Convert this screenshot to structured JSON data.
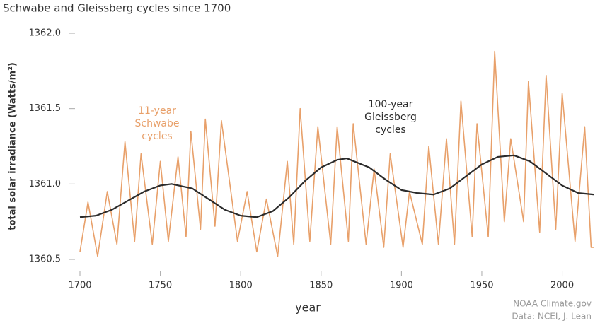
{
  "chart_data": {
    "type": "line",
    "title": "Schwabe and Gleissberg cycles since 1700",
    "x_label": "year",
    "y_label": "total solar irradiance (Watts/m²)",
    "xlim": [
      1700,
      2020
    ],
    "xticks": [
      1700,
      1750,
      1800,
      1850,
      1900,
      1950,
      2000
    ],
    "ylim": [
      1360.5,
      1362.0
    ],
    "yticks": [
      1360.5,
      {
        "value": 1361,
        "label": "1361.0"
      },
      1361.5,
      {
        "value": 1362,
        "label": "1362.0"
      }
    ],
    "series": [
      {
        "name": "11-year Schwabe cycles",
        "color": "#e8a06a",
        "x": [
          1700,
          1705,
          1711,
          1717,
          1723,
          1728,
          1734,
          1738,
          1745,
          1750,
          1755,
          1761,
          1766,
          1769,
          1775,
          1778,
          1784,
          1788,
          1798,
          1804,
          1810,
          1816,
          1823,
          1829,
          1833,
          1837,
          1843,
          1848,
          1856,
          1860,
          1867,
          1870,
          1878,
          1883,
          1889,
          1893,
          1901,
          1905,
          1913,
          1917,
          1923,
          1928,
          1933,
          1937,
          1944,
          1947,
          1954,
          1958,
          1964,
          1968,
          1976,
          1979,
          1986,
          1990,
          1996,
          2000,
          2008,
          2014,
          2018,
          2020
        ],
        "values": [
          1360.55,
          1360.88,
          1360.52,
          1360.95,
          1360.6,
          1361.28,
          1360.62,
          1361.2,
          1360.6,
          1361.15,
          1360.62,
          1361.18,
          1360.65,
          1361.35,
          1360.7,
          1361.43,
          1360.72,
          1361.42,
          1360.62,
          1360.95,
          1360.55,
          1360.9,
          1360.52,
          1361.15,
          1360.6,
          1361.5,
          1360.62,
          1361.38,
          1360.6,
          1361.38,
          1360.62,
          1361.4,
          1360.6,
          1361.1,
          1360.58,
          1361.2,
          1360.58,
          1360.95,
          1360.6,
          1361.25,
          1360.6,
          1361.3,
          1360.6,
          1361.55,
          1360.65,
          1361.4,
          1360.65,
          1361.88,
          1360.75,
          1361.3,
          1360.75,
          1361.68,
          1360.68,
          1361.72,
          1360.7,
          1361.6,
          1360.62,
          1361.38,
          1360.58,
          1360.58
        ]
      },
      {
        "name": "100-year Gleissberg cycles",
        "color": "#2b2b2b",
        "x": [
          1700,
          1710,
          1720,
          1730,
          1740,
          1750,
          1757,
          1770,
          1780,
          1790,
          1800,
          1810,
          1820,
          1830,
          1840,
          1850,
          1860,
          1866,
          1880,
          1890,
          1900,
          1910,
          1920,
          1930,
          1940,
          1950,
          1960,
          1970,
          1980,
          1990,
          2000,
          2010,
          2020
        ],
        "values": [
          1360.78,
          1360.79,
          1360.83,
          1360.89,
          1360.95,
          1360.99,
          1361.0,
          1360.97,
          1360.9,
          1360.83,
          1360.79,
          1360.78,
          1360.82,
          1360.91,
          1361.02,
          1361.11,
          1361.16,
          1361.17,
          1361.11,
          1361.03,
          1360.96,
          1360.94,
          1360.93,
          1360.97,
          1361.05,
          1361.13,
          1361.18,
          1361.19,
          1361.15,
          1361.07,
          1360.99,
          1360.94,
          1360.93
        ]
      }
    ],
    "annotations": [
      {
        "lines": [
          "11-year",
          "Schwabe",
          "cycles"
        ],
        "color": "#e8a06a"
      },
      {
        "lines": [
          "100-year",
          "Gleissberg",
          "cycles"
        ],
        "color": "#2b2b2b"
      }
    ],
    "source": [
      "NOAA Climate.gov",
      "Data: NCEI, J. Lean"
    ]
  }
}
